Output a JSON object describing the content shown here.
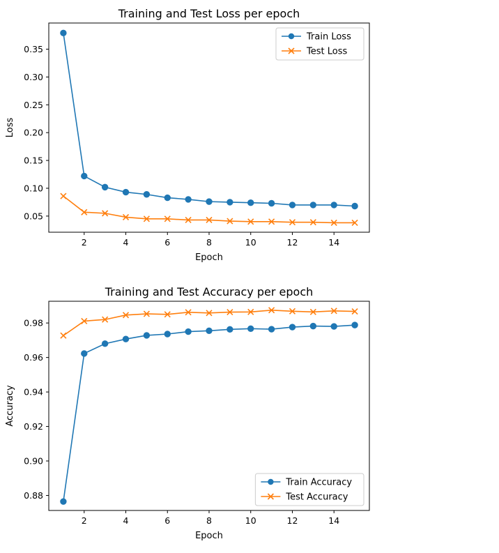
{
  "chart_data": [
    {
      "type": "line",
      "title": "Training and Test Loss per epoch",
      "xlabel": "Epoch",
      "ylabel": "Loss",
      "xlim": [
        0.3,
        15.7
      ],
      "ylim": [
        0.021,
        0.397
      ],
      "xticks": [
        2,
        4,
        6,
        8,
        10,
        12,
        14
      ],
      "yticks": [
        0.05,
        0.1,
        0.15,
        0.2,
        0.25,
        0.3,
        0.35
      ],
      "ytick_labels": [
        "0.05",
        "0.10",
        "0.15",
        "0.20",
        "0.25",
        "0.30",
        "0.35"
      ],
      "legend_position": "top-right",
      "x": [
        1,
        2,
        3,
        4,
        5,
        6,
        7,
        8,
        9,
        10,
        11,
        12,
        13,
        14,
        15
      ],
      "series": [
        {
          "name": "Train Loss",
          "marker": "circle",
          "color": "#1f77b4",
          "values": [
            0.379,
            0.122,
            0.102,
            0.093,
            0.089,
            0.083,
            0.08,
            0.076,
            0.075,
            0.074,
            0.073,
            0.07,
            0.07,
            0.07,
            0.068
          ]
        },
        {
          "name": "Test Loss",
          "marker": "x",
          "color": "#ff7f0e",
          "values": [
            0.086,
            0.057,
            0.055,
            0.048,
            0.045,
            0.045,
            0.043,
            0.043,
            0.041,
            0.04,
            0.04,
            0.039,
            0.039,
            0.038,
            0.038
          ]
        }
      ]
    },
    {
      "type": "line",
      "title": "Training and Test Accuracy per epoch",
      "xlabel": "Epoch",
      "ylabel": "Accuracy",
      "xlim": [
        0.3,
        15.7
      ],
      "ylim": [
        0.8713,
        0.9926
      ],
      "xticks": [
        2,
        4,
        6,
        8,
        10,
        12,
        14
      ],
      "yticks": [
        0.88,
        0.9,
        0.92,
        0.94,
        0.96,
        0.98
      ],
      "ytick_labels": [
        "0.88",
        "0.90",
        "0.92",
        "0.94",
        "0.96",
        "0.98"
      ],
      "legend_position": "bottom-right",
      "x": [
        1,
        2,
        3,
        4,
        5,
        6,
        7,
        8,
        9,
        10,
        11,
        12,
        13,
        14,
        15
      ],
      "series": [
        {
          "name": "Train Accuracy",
          "marker": "circle",
          "color": "#1f77b4",
          "values": [
            0.8765,
            0.9623,
            0.968,
            0.9707,
            0.9728,
            0.9736,
            0.975,
            0.9755,
            0.9763,
            0.9767,
            0.9764,
            0.9776,
            0.9782,
            0.978,
            0.9788
          ]
        },
        {
          "name": "Test Accuracy",
          "marker": "x",
          "color": "#ff7f0e",
          "values": [
            0.9727,
            0.9811,
            0.982,
            0.9846,
            0.9853,
            0.985,
            0.9862,
            0.9858,
            0.9863,
            0.9864,
            0.9874,
            0.9868,
            0.9864,
            0.987,
            0.9867
          ]
        }
      ]
    }
  ]
}
